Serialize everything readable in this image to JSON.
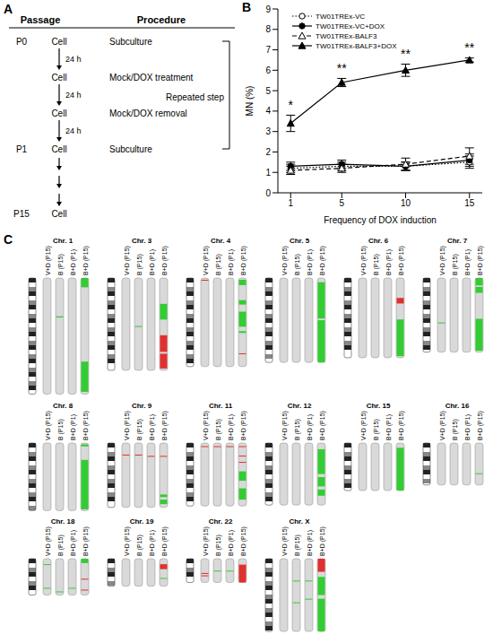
{
  "panel_labels": [
    "A",
    "B",
    "C"
  ],
  "panel_a": {
    "headers": [
      "Passage",
      "Procedure"
    ],
    "steps": [
      {
        "passage": "P0",
        "cell": "Cell",
        "procedure": "Subculture"
      },
      {
        "cell": "Cell",
        "procedure": "Mock/DOX treatment"
      },
      {
        "cell": "Cell",
        "procedure": "Mock/DOX removal"
      },
      {
        "passage": "P1",
        "cell": "Cell",
        "procedure": "Subculture"
      },
      {
        "passage": "P15",
        "cell": "Cell"
      }
    ],
    "intervals": [
      "24 h",
      "24 h",
      "24 h"
    ],
    "bracket": "Repeated step"
  },
  "chart_data": {
    "type": "line",
    "x_label": "Frequency of DOX induction",
    "y_label": "MN (%)",
    "x": [
      1,
      5,
      10,
      15
    ],
    "xlim": [
      0,
      16
    ],
    "xticks": [
      1,
      5,
      10,
      15
    ],
    "ylim": [
      0,
      9
    ],
    "yticks": [
      0,
      1,
      2,
      3,
      4,
      5,
      6,
      7,
      8,
      9
    ],
    "grid": false,
    "legend": "top-left",
    "series": [
      {
        "name": "TW01TREx-VC",
        "color": "#000000",
        "marker": "open-circle",
        "line_style": "dotted",
        "values": [
          1.2,
          1.3,
          1.3,
          1.5
        ],
        "errors": [
          0.2,
          0.2,
          0.2,
          0.3
        ]
      },
      {
        "name": "TW01TREx-VC+DOX",
        "color": "#000000",
        "marker": "circle",
        "line_style": "solid",
        "values": [
          1.3,
          1.4,
          1.3,
          1.6
        ],
        "errors": [
          0.2,
          0.2,
          0.2,
          0.3
        ]
      },
      {
        "name": "TW01TREx-BALF3",
        "color": "#000000",
        "marker": "open-triangle",
        "line_style": "dashed",
        "values": [
          1.1,
          1.2,
          1.4,
          1.8
        ],
        "errors": [
          0.2,
          0.2,
          0.3,
          0.4
        ]
      },
      {
        "name": "TW01TREx-BALF3+DOX",
        "color": "#000000",
        "marker": "triangle",
        "line_style": "solid",
        "values": [
          3.4,
          5.4,
          6.0,
          6.5
        ],
        "errors": [
          0.4,
          0.2,
          0.3,
          0.1
        ]
      }
    ],
    "annotations": [
      {
        "x": 1,
        "y": 4.3,
        "text": "*"
      },
      {
        "x": 5,
        "y": 6.1,
        "text": "**"
      },
      {
        "x": 10,
        "y": 6.8,
        "text": "**"
      },
      {
        "x": 15,
        "y": 7.1,
        "text": "**"
      }
    ]
  },
  "panel_c": {
    "columns": [
      "V+D (P15)",
      "B (P15)",
      "B+D (P1)",
      "B+D (P15)"
    ],
    "rows": [
      [
        {
          "name": "Chr. 1",
          "segments": [
            {
              "col": 1,
              "from": 0.33,
              "to": 0.34,
              "color": "#33cc33"
            },
            {
              "col": 3,
              "from": 0.0,
              "to": 0.08,
              "color": "#33cc33"
            },
            {
              "col": 3,
              "from": 0.72,
              "to": 0.98,
              "color": "#33cc33"
            }
          ]
        },
        {
          "name": "Chr. 3",
          "segments": [
            {
              "col": 1,
              "from": 0.52,
              "to": 0.53,
              "color": "#33cc33"
            },
            {
              "col": 3,
              "from": 0.28,
              "to": 0.45,
              "color": "#33cc33"
            },
            {
              "col": 3,
              "from": 0.62,
              "to": 0.8,
              "color": "#e03030"
            },
            {
              "col": 3,
              "from": 0.82,
              "to": 0.98,
              "color": "#e03030"
            }
          ]
        },
        {
          "name": "Chr. 4",
          "segments": [
            {
              "col": 0,
              "from": 0.02,
              "to": 0.03,
              "color": "#e03030"
            },
            {
              "col": 3,
              "from": 0.02,
              "to": 0.08,
              "color": "#33cc33"
            },
            {
              "col": 3,
              "from": 0.25,
              "to": 0.3,
              "color": "#33cc33"
            },
            {
              "col": 3,
              "from": 0.38,
              "to": 0.55,
              "color": "#33cc33"
            },
            {
              "col": 3,
              "from": 0.6,
              "to": 0.62,
              "color": "#33cc33"
            },
            {
              "col": 3,
              "from": 0.85,
              "to": 0.86,
              "color": "#e03030"
            }
          ]
        },
        {
          "name": "Chr. 5",
          "segments": [
            {
              "col": 3,
              "from": 0.05,
              "to": 0.48,
              "color": "#33cc33"
            },
            {
              "col": 3,
              "from": 0.5,
              "to": 1.0,
              "color": "#33cc33"
            }
          ]
        },
        {
          "name": "Chr. 6",
          "segments": [
            {
              "col": 3,
              "from": 0.25,
              "to": 0.32,
              "color": "#e03030"
            },
            {
              "col": 3,
              "from": 0.52,
              "to": 0.98,
              "color": "#33cc33"
            }
          ]
        },
        {
          "name": "Chr. 7",
          "segments": [
            {
              "col": 0,
              "from": 0.6,
              "to": 0.61,
              "color": "#33cc33"
            },
            {
              "col": 3,
              "from": 0.0,
              "to": 0.1,
              "color": "#33cc33"
            },
            {
              "col": 3,
              "from": 0.12,
              "to": 0.2,
              "color": "#33cc33"
            },
            {
              "col": 3,
              "from": 0.55,
              "to": 0.98,
              "color": "#33cc33"
            }
          ]
        }
      ],
      [
        {
          "name": "Chr. 8",
          "segments": [
            {
              "col": 3,
              "from": 0.02,
              "to": 0.05,
              "color": "#33cc33"
            },
            {
              "col": 3,
              "from": 0.25,
              "to": 0.98,
              "color": "#33cc33"
            }
          ]
        },
        {
          "name": "Chr. 9",
          "segments": [
            {
              "col": 0,
              "from": 0.18,
              "to": 0.19,
              "color": "#e03030"
            },
            {
              "col": 1,
              "from": 0.18,
              "to": 0.19,
              "color": "#e03030"
            },
            {
              "col": 2,
              "from": 0.2,
              "to": 0.21,
              "color": "#e03030"
            },
            {
              "col": 3,
              "from": 0.2,
              "to": 0.21,
              "color": "#e03030"
            },
            {
              "col": 3,
              "from": 0.8,
              "to": 0.84,
              "color": "#33cc33"
            },
            {
              "col": 3,
              "from": 0.88,
              "to": 0.95,
              "color": "#33cc33"
            }
          ]
        },
        {
          "name": "Chr. 11",
          "segments": [
            {
              "col": 0,
              "from": 0.05,
              "to": 0.06,
              "color": "#e03030"
            },
            {
              "col": 1,
              "from": 0.05,
              "to": 0.06,
              "color": "#e03030"
            },
            {
              "col": 2,
              "from": 0.05,
              "to": 0.06,
              "color": "#e03030"
            },
            {
              "col": 3,
              "from": 0.05,
              "to": 0.06,
              "color": "#e03030"
            },
            {
              "col": 3,
              "from": 0.2,
              "to": 0.21,
              "color": "#e03030"
            },
            {
              "col": 3,
              "from": 0.3,
              "to": 0.31,
              "color": "#e03030"
            },
            {
              "col": 3,
              "from": 0.45,
              "to": 0.6,
              "color": "#33cc33"
            },
            {
              "col": 3,
              "from": 0.72,
              "to": 0.9,
              "color": "#33cc33"
            }
          ]
        },
        {
          "name": "Chr. 12",
          "segments": [
            {
              "col": 3,
              "from": 0.1,
              "to": 0.5,
              "color": "#33cc33"
            },
            {
              "col": 3,
              "from": 0.55,
              "to": 0.7,
              "color": "#33cc33"
            },
            {
              "col": 3,
              "from": 0.75,
              "to": 0.85,
              "color": "#33cc33"
            }
          ]
        },
        {
          "name": "Chr. 15",
          "segments": [
            {
              "col": 3,
              "from": 0.1,
              "to": 1.0,
              "color": "#33cc33"
            }
          ]
        },
        {
          "name": "Chr. 16",
          "segments": [
            {
              "col": 3,
              "from": 0.72,
              "to": 0.73,
              "color": "#33cc33"
            }
          ]
        }
      ],
      [
        {
          "name": "Chr. 18",
          "segments": [
            {
              "col": 0,
              "from": 0.15,
              "to": 0.16,
              "color": "#33cc33"
            },
            {
              "col": 0,
              "from": 0.8,
              "to": 0.81,
              "color": "#33cc33"
            },
            {
              "col": 1,
              "from": 0.9,
              "to": 0.91,
              "color": "#33cc33"
            },
            {
              "col": 2,
              "from": 0.8,
              "to": 0.81,
              "color": "#33cc33"
            },
            {
              "col": 3,
              "from": 0.0,
              "to": 0.12,
              "color": "#33cc33"
            },
            {
              "col": 3,
              "from": 0.55,
              "to": 0.56,
              "color": "#e03030"
            },
            {
              "col": 3,
              "from": 0.85,
              "to": 0.86,
              "color": "#e03030"
            }
          ]
        },
        {
          "name": "Chr. 19",
          "segments": [
            {
              "col": 3,
              "from": 0.2,
              "to": 0.38,
              "color": "#e03030"
            },
            {
              "col": 3,
              "from": 0.7,
              "to": 0.71,
              "color": "#33cc33"
            }
          ]
        },
        {
          "name": "Chr. 22",
          "segments": [
            {
              "col": 0,
              "from": 0.6,
              "to": 0.61,
              "color": "#e03030"
            },
            {
              "col": 0,
              "from": 0.7,
              "to": 0.71,
              "color": "#e03030"
            },
            {
              "col": 1,
              "from": 0.5,
              "to": 0.51,
              "color": "#33cc33"
            },
            {
              "col": 2,
              "from": 0.5,
              "to": 0.51,
              "color": "#33cc33"
            },
            {
              "col": 3,
              "from": 0.25,
              "to": 1.0,
              "color": "#e03030"
            }
          ]
        },
        {
          "name": "Chr. X",
          "segments": [
            {
              "col": 1,
              "from": 0.3,
              "to": 0.31,
              "color": "#33cc33"
            },
            {
              "col": 1,
              "from": 0.6,
              "to": 0.61,
              "color": "#33cc33"
            },
            {
              "col": 2,
              "from": 0.3,
              "to": 0.31,
              "color": "#33cc33"
            },
            {
              "col": 2,
              "from": 0.55,
              "to": 0.56,
              "color": "#33cc33"
            },
            {
              "col": 3,
              "from": 0.0,
              "to": 0.18,
              "color": "#e03030"
            },
            {
              "col": 3,
              "from": 0.25,
              "to": 0.5,
              "color": "#33cc33"
            },
            {
              "col": 3,
              "from": 0.55,
              "to": 1.0,
              "color": "#33cc33"
            }
          ]
        }
      ]
    ]
  }
}
